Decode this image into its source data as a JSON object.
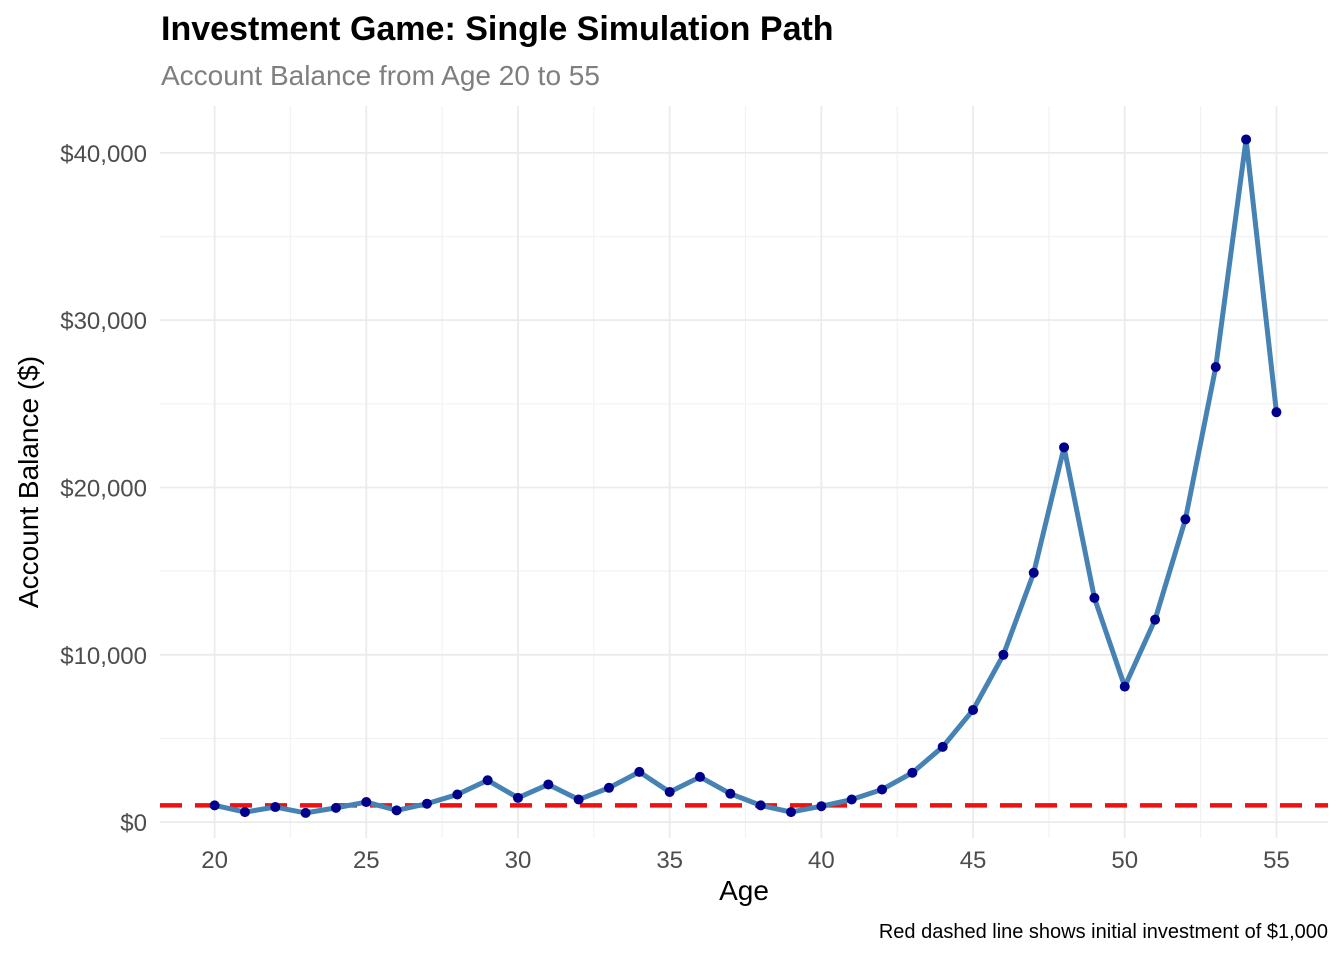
{
  "chart_data": {
    "type": "line",
    "title": "Investment Game: Single Simulation Path",
    "subtitle": "Account Balance from Age 20 to 55",
    "xlabel": "Age",
    "ylabel": "Account Balance ($)",
    "caption": "Red dashed line shows initial investment of $1,000",
    "xlim": [
      18.2,
      56.7
    ],
    "ylim": [
      -950,
      42800
    ],
    "x_ticks": [
      20,
      25,
      30,
      35,
      40,
      45,
      50,
      55
    ],
    "x_tick_labels": [
      "20",
      "25",
      "30",
      "35",
      "40",
      "45",
      "50",
      "55"
    ],
    "y_ticks": [
      0,
      10000,
      20000,
      30000,
      40000
    ],
    "y_tick_labels": [
      "$0",
      "$10,000",
      "$20,000",
      "$30,000",
      "$40,000"
    ],
    "grid": true,
    "x": [
      20,
      21,
      22,
      23,
      24,
      25,
      26,
      27,
      28,
      29,
      30,
      31,
      32,
      33,
      34,
      35,
      36,
      37,
      38,
      39,
      40,
      41,
      42,
      43,
      44,
      45,
      46,
      47,
      48,
      49,
      50,
      51,
      52,
      53,
      54,
      55
    ],
    "y": [
      1000,
      600,
      900,
      550,
      850,
      1200,
      700,
      1100,
      1650,
      2500,
      1450,
      2250,
      1350,
      2050,
      3000,
      1800,
      2700,
      1700,
      1000,
      600,
      950,
      1350,
      1950,
      2950,
      4500,
      6700,
      10000,
      14900,
      22400,
      13400,
      8100,
      12100,
      18100,
      27200,
      40800,
      24500
    ],
    "reference_line": {
      "y": 1000,
      "style": "dashed",
      "color": "#ee1111"
    },
    "line_color": "#4682b4",
    "point_color": "#00008b"
  }
}
